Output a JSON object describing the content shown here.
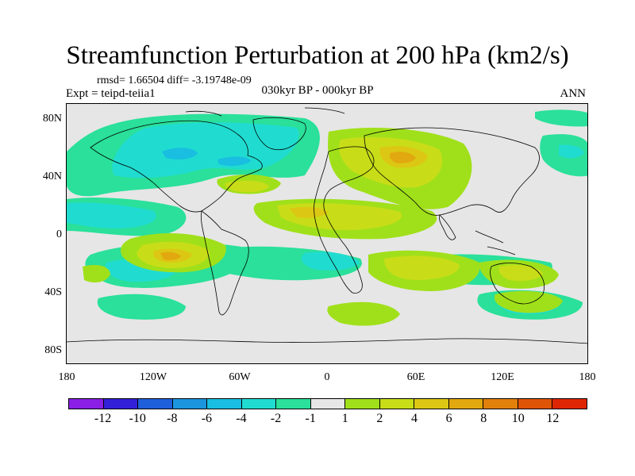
{
  "title": "Streamfunction Perturbation at 200 hPa (km2/s)",
  "stats": "rmsd= 1.66504 diff= -3.19748e-09",
  "experiment": "Expt = teipd-teiia1",
  "period": "030kyr BP - 000kyr BP",
  "season": "ANN",
  "lon_ticks": [
    "180",
    "120W",
    "60W",
    "0",
    "60E",
    "120E",
    "180"
  ],
  "lat_ticks": [
    "80N",
    "40N",
    "0",
    "40S",
    "80S"
  ],
  "colorbar": {
    "colors": [
      "#8a1fe6",
      "#3320d9",
      "#1f5fdb",
      "#1b95de",
      "#19bee0",
      "#20dcd0",
      "#2ae09a",
      "#e6e6e6",
      "#a0e01a",
      "#c8dd18",
      "#dcc814",
      "#e2a80f",
      "#e2800c",
      "#e05408",
      "#df2604"
    ],
    "labels": [
      "-12",
      "-10",
      "-8",
      "-6",
      "-4",
      "-2",
      "-1",
      "1",
      "2",
      "4",
      "6",
      "8",
      "10",
      "12"
    ]
  }
}
